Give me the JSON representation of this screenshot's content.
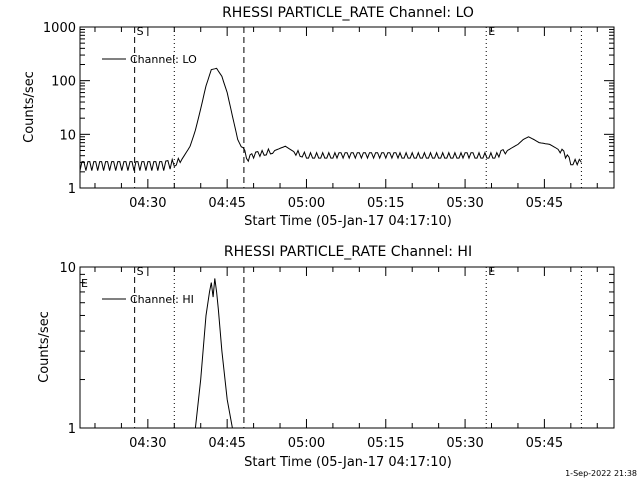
{
  "chart_data": [
    {
      "type": "line",
      "title": "RHESSI PARTICLE_RATE Channel: LO",
      "xlabel": "Start Time (05-Jan-17 04:17:10)",
      "ylabel": "Counts/sec",
      "yscale": "log",
      "ylim": [
        1,
        1000
      ],
      "xlim": [
        "04:17:10",
        "05:58:10"
      ],
      "x_ticks": [
        "04:30",
        "04:45",
        "05:00",
        "05:15",
        "05:30",
        "05:45"
      ],
      "y_ticks": [
        "1",
        "10",
        "100",
        "1000"
      ],
      "legend": "Channel: LO",
      "legend_position": "top-left",
      "vlines": [
        {
          "time": "04:27:30",
          "style": "dashed",
          "label": "S"
        },
        {
          "time": "04:35:00",
          "style": "dotted",
          "label": ""
        },
        {
          "time": "04:48:10",
          "style": "dashed",
          "label": ""
        },
        {
          "time": "05:34:00",
          "style": "dotted",
          "label": "E"
        },
        {
          "time": "05:52:00",
          "style": "dotted",
          "label": ""
        }
      ],
      "series": [
        {
          "x": [
            "04:17:10",
            "04:22:00",
            "04:27:00",
            "04:30:00",
            "04:33:00",
            "04:35:00",
            "04:36:30",
            "04:38:00",
            "04:39:00",
            "04:40:00",
            "04:41:00",
            "04:42:00",
            "04:43:00",
            "04:44:00",
            "04:45:00",
            "04:46:00",
            "04:47:00",
            "04:48:00",
            "04:49:00",
            "04:50:00",
            "04:52:00",
            "04:54:00",
            "04:56:00",
            "04:58:00",
            "05:00:00",
            "05:05:00",
            "05:10:00",
            "05:15:00",
            "05:20:00",
            "05:25:00",
            "05:30:00",
            "05:33:00",
            "05:36:00",
            "05:38:00",
            "05:40:00",
            "05:41:00",
            "05:42:00",
            "05:43:00",
            "05:44:00",
            "05:46:00",
            "05:48:00",
            "05:49:00",
            "05:50:00",
            "05:52:00"
          ],
          "y": [
            2.5,
            2.5,
            2.5,
            2.5,
            2.5,
            2.8,
            3.5,
            6,
            12,
            30,
            80,
            160,
            170,
            120,
            60,
            22,
            8,
            5,
            3.5,
            4,
            4.5,
            5,
            6,
            4.5,
            4,
            4,
            4,
            4,
            4,
            4,
            4,
            4,
            4,
            5,
            6.5,
            8,
            9,
            8,
            7,
            6.5,
            5,
            4,
            3,
            3
          ]
        }
      ]
    },
    {
      "type": "line",
      "title": "RHESSI PARTICLE_RATE Channel: HI",
      "xlabel": "Start Time (05-Jan-17 04:17:10)",
      "ylabel": "Counts/sec",
      "yscale": "log",
      "ylim": [
        1,
        10
      ],
      "xlim": [
        "04:17:10",
        "05:58:10"
      ],
      "x_ticks": [
        "04:30",
        "04:45",
        "05:00",
        "05:15",
        "05:30",
        "05:45"
      ],
      "y_ticks": [
        "1",
        "10"
      ],
      "legend": "Channel: HI",
      "legend_position": "top-left",
      "vlines": [
        {
          "time": "04:27:30",
          "style": "dashed",
          "label": "S"
        },
        {
          "time": "04:35:00",
          "style": "dotted",
          "label": ""
        },
        {
          "time": "04:48:10",
          "style": "dashed",
          "label": ""
        },
        {
          "time": "05:34:00",
          "style": "dotted",
          "label": "E"
        },
        {
          "time": "05:52:00",
          "style": "dotted",
          "label": ""
        }
      ],
      "edge_labels": [
        "E"
      ],
      "series": [
        {
          "x": [
            "04:39:00",
            "04:40:00",
            "04:41:00",
            "04:41:40",
            "04:42:00",
            "04:42:20",
            "04:42:40",
            "04:43:00",
            "04:43:20",
            "04:44:00",
            "04:45:00",
            "04:46:00"
          ],
          "y": [
            1,
            2,
            5,
            7,
            8,
            6.5,
            8.5,
            7,
            5.5,
            3,
            1.5,
            1
          ]
        }
      ]
    }
  ],
  "footer": "1-Sep-2022 21:38"
}
